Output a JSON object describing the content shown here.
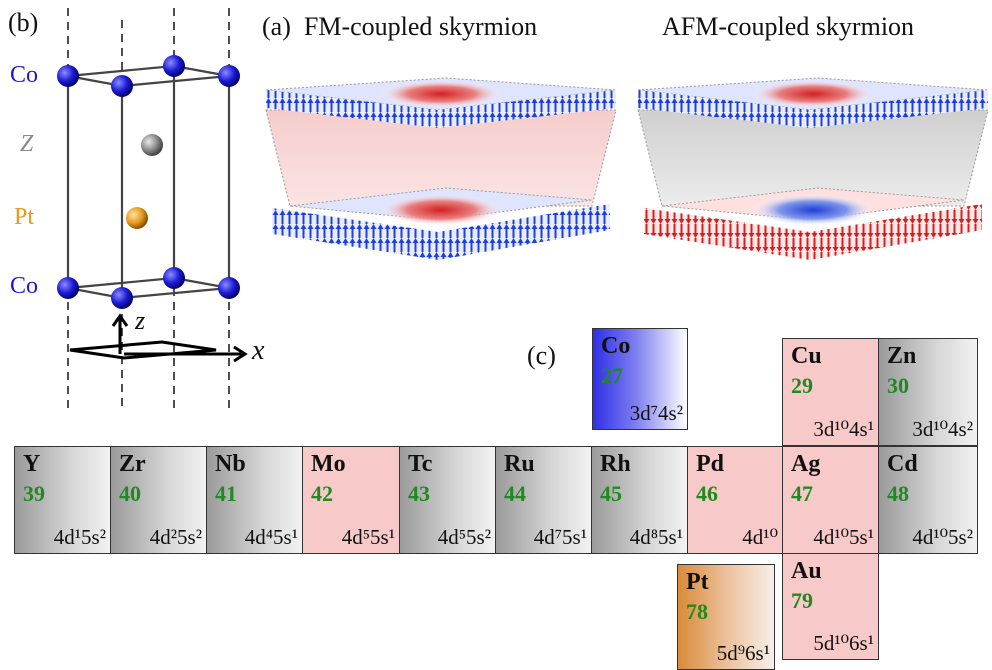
{
  "panel_b": {
    "label": "(b)",
    "atoms": {
      "co_top": "Co",
      "z": "Z",
      "pt": "Pt",
      "co_bottom": "Co"
    },
    "axes": {
      "z": "z",
      "x": "x"
    }
  },
  "panel_a": {
    "label": "(a)",
    "fm_title": "FM-coupled skyrmion",
    "afm_title": "AFM-coupled skyrmion"
  },
  "panel_c": {
    "label": "(c)",
    "elements": [
      {
        "key": "co",
        "symbol": "Co",
        "number": "27",
        "config": "3d⁷4s²"
      },
      {
        "key": "cu",
        "symbol": "Cu",
        "number": "29",
        "config": "3d¹⁰4s¹"
      },
      {
        "key": "zn",
        "symbol": "Zn",
        "number": "30",
        "config": "3d¹⁰4s²"
      },
      {
        "key": "y",
        "symbol": "Y",
        "number": "39",
        "config": "4d¹5s²"
      },
      {
        "key": "zr",
        "symbol": "Zr",
        "number": "40",
        "config": "4d²5s²"
      },
      {
        "key": "nb",
        "symbol": "Nb",
        "number": "41",
        "config": "4d⁴5s¹"
      },
      {
        "key": "mo",
        "symbol": "Mo",
        "number": "42",
        "config": "4d⁵5s¹"
      },
      {
        "key": "tc",
        "symbol": "Tc",
        "number": "43",
        "config": "4d⁵5s²"
      },
      {
        "key": "ru",
        "symbol": "Ru",
        "number": "44",
        "config": "4d⁷5s¹"
      },
      {
        "key": "rh",
        "symbol": "Rh",
        "number": "45",
        "config": "4d⁸5s¹"
      },
      {
        "key": "pd",
        "symbol": "Pd",
        "number": "46",
        "config": "4d¹⁰"
      },
      {
        "key": "ag",
        "symbol": "Ag",
        "number": "47",
        "config": "4d¹⁰5s¹"
      },
      {
        "key": "cd",
        "symbol": "Cd",
        "number": "48",
        "config": "4d¹⁰5s²"
      },
      {
        "key": "pt",
        "symbol": "Pt",
        "number": "78",
        "config": "5d⁹6s¹"
      },
      {
        "key": "au",
        "symbol": "Au",
        "number": "79",
        "config": "5d¹⁰6s¹"
      }
    ]
  },
  "colors": {
    "co_atom": "#1a1ad6",
    "pt_atom": "#e89a1e",
    "z_atom": "#8a8a8a",
    "spin_up": "#1f3fd8",
    "spin_down": "#d42020",
    "atomic_number": "#1f8a1f",
    "fm_spacer": "#f6cccc",
    "afm_spacer": "#d9d9d9"
  }
}
